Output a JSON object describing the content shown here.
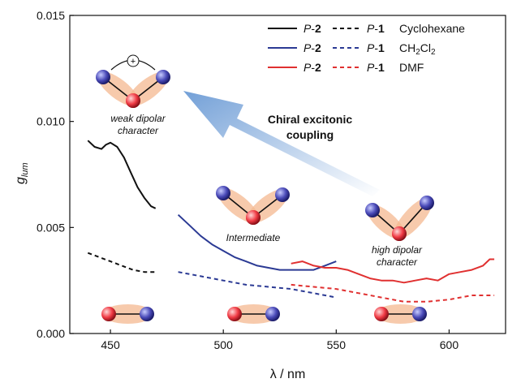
{
  "chart_data": {
    "type": "line",
    "xlabel": "λ / nm",
    "ylabel": "g",
    "ylabel_sub": "lum",
    "xlim": [
      432,
      625
    ],
    "ylim": [
      0,
      0.015
    ],
    "x_ticks": [
      450,
      500,
      550,
      600
    ],
    "x_tick_labels": [
      "450",
      "500",
      "550",
      "600"
    ],
    "y_ticks": [
      0,
      0.005,
      0.01,
      0.015
    ],
    "y_tick_labels": [
      "0.000",
      "0.005",
      "0.010",
      "0.015"
    ],
    "legend": {
      "placement": "top-right",
      "rows": [
        {
          "solid": "P-2",
          "dashed": "P-1",
          "solvent": "Cyclohexane",
          "color": "#111111"
        },
        {
          "solid": "P-2",
          "dashed": "P-1",
          "solvent": "CH2Cl2",
          "color": "#2b3a94"
        },
        {
          "solid": "P-2",
          "dashed": "P-1",
          "solvent": "DMF",
          "color": "#e03030"
        }
      ]
    },
    "series": [
      {
        "name": "P-2 Cyclohexane",
        "color": "#111111",
        "style": "solid",
        "x": [
          440,
          443,
          446,
          448,
          450,
          453,
          456,
          459,
          462,
          465,
          468,
          470
        ],
        "y": [
          0.0091,
          0.0088,
          0.0087,
          0.0089,
          0.009,
          0.0088,
          0.0083,
          0.0076,
          0.0069,
          0.0064,
          0.006,
          0.0059
        ]
      },
      {
        "name": "P-1 Cyclohexane",
        "color": "#111111",
        "style": "dashed",
        "x": [
          440,
          445,
          450,
          455,
          460,
          465,
          470
        ],
        "y": [
          0.0038,
          0.0036,
          0.0034,
          0.0032,
          0.003,
          0.0029,
          0.0029
        ]
      },
      {
        "name": "P-2 CH2Cl2",
        "color": "#2b3a94",
        "style": "solid",
        "x": [
          480,
          485,
          490,
          495,
          500,
          505,
          510,
          515,
          520,
          525,
          530,
          535,
          540,
          545,
          550
        ],
        "y": [
          0.0056,
          0.0051,
          0.0046,
          0.0042,
          0.0039,
          0.0036,
          0.0034,
          0.0032,
          0.0031,
          0.003,
          0.003,
          0.003,
          0.003,
          0.0032,
          0.0034
        ]
      },
      {
        "name": "P-1 CH2Cl2",
        "color": "#2b3a94",
        "style": "dashed",
        "x": [
          480,
          490,
          500,
          510,
          520,
          530,
          540,
          550
        ],
        "y": [
          0.0029,
          0.0027,
          0.0025,
          0.0023,
          0.0022,
          0.0021,
          0.0019,
          0.0017
        ]
      },
      {
        "name": "P-2 DMF",
        "color": "#e03030",
        "style": "solid",
        "x": [
          530,
          535,
          540,
          545,
          550,
          555,
          560,
          565,
          570,
          575,
          580,
          585,
          590,
          595,
          600,
          605,
          610,
          615,
          618,
          620
        ],
        "y": [
          0.0033,
          0.0034,
          0.0032,
          0.0031,
          0.0031,
          0.003,
          0.0028,
          0.0026,
          0.0025,
          0.0025,
          0.0024,
          0.0025,
          0.0026,
          0.0025,
          0.0028,
          0.0029,
          0.003,
          0.0032,
          0.0035,
          0.0035
        ]
      },
      {
        "name": "P-1 DMF",
        "color": "#e03030",
        "style": "dashed",
        "x": [
          530,
          540,
          550,
          560,
          570,
          580,
          590,
          600,
          610,
          620
        ],
        "y": [
          0.0023,
          0.0022,
          0.0021,
          0.0019,
          0.0017,
          0.0015,
          0.0015,
          0.0016,
          0.0018,
          0.0018
        ]
      }
    ],
    "annotations": {
      "arrow_label": [
        "Chiral excitonic",
        "coupling"
      ],
      "weak_label": [
        "weak dipolar",
        "character"
      ],
      "intermediate_label": "Intermediate",
      "high_label": [
        "high dipolar",
        "character"
      ],
      "plus_symbol": "+"
    }
  }
}
